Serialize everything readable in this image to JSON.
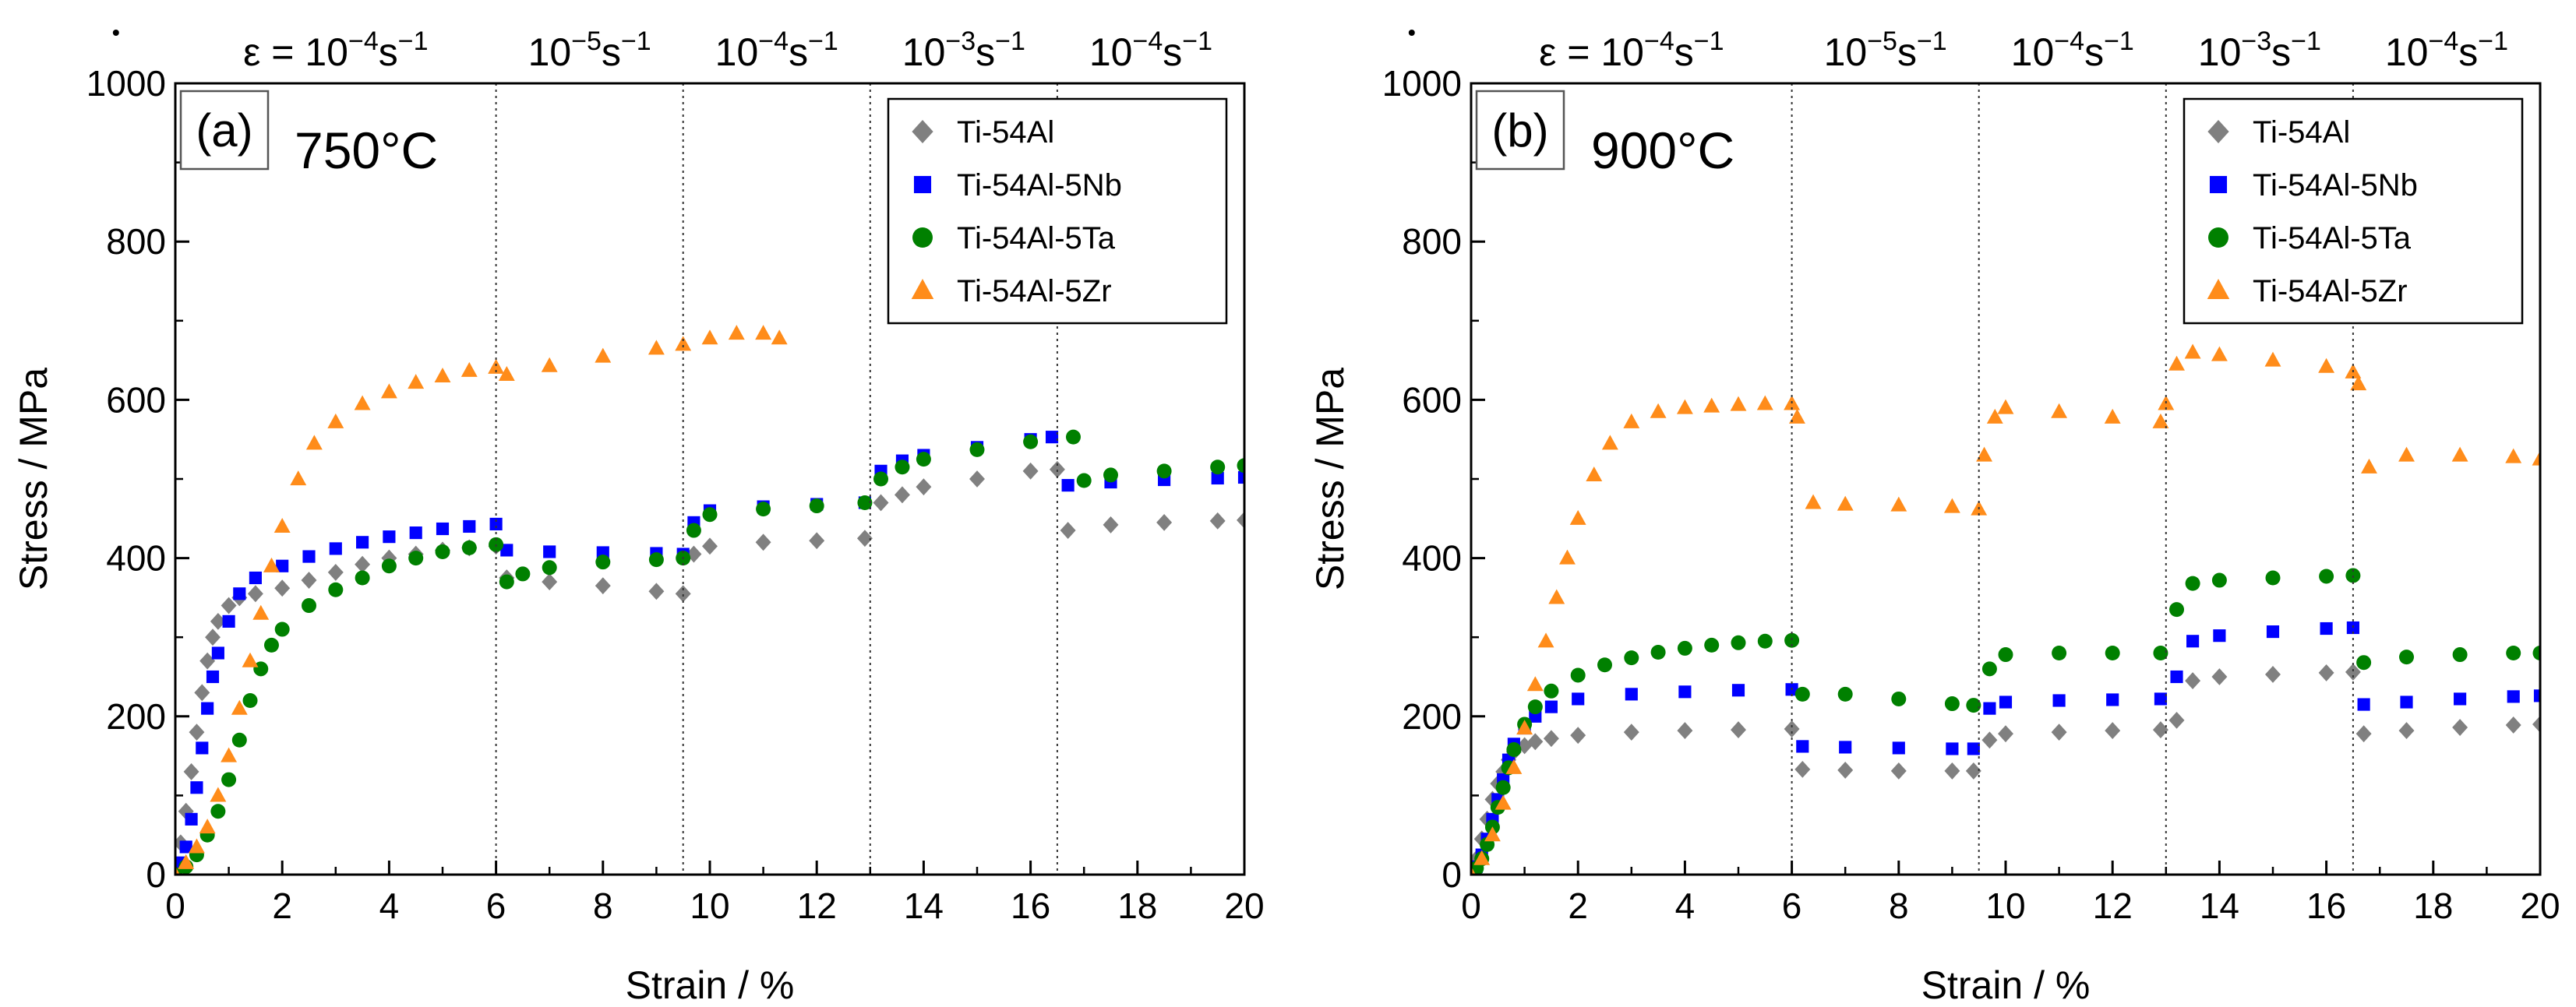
{
  "chart_data": [
    {
      "type": "scatter",
      "panel_label": "(a)",
      "temperature": "750°C",
      "xlabel": "Strain / %",
      "ylabel": "Stress / MPa",
      "xlim": [
        0,
        20
      ],
      "ylim": [
        0,
        1000
      ],
      "xticks": [
        0,
        2,
        4,
        6,
        8,
        10,
        12,
        14,
        16,
        18,
        20
      ],
      "yticks": [
        0,
        200,
        400,
        600,
        800,
        1000
      ],
      "grid": false,
      "legend_position": "top-right",
      "strain_rate_changes": [
        6,
        9.5,
        13,
        16.5
      ],
      "rate_labels": [
        {
          "prefix": "ε = 10",
          "exp": "−4",
          "unit": "s",
          "unit_exp": "−1"
        },
        {
          "prefix": "10",
          "exp": "−5",
          "unit": "s",
          "unit_exp": "−1"
        },
        {
          "prefix": "10",
          "exp": "−4",
          "unit": "s",
          "unit_exp": "−1"
        },
        {
          "prefix": "10",
          "exp": "−3",
          "unit": "s",
          "unit_exp": "−1"
        },
        {
          "prefix": "10",
          "exp": "−4",
          "unit": "s",
          "unit_exp": "−1"
        }
      ],
      "series": [
        {
          "name": "Ti-54Al",
          "color": "#808080",
          "marker": "diamond",
          "x": [
            0,
            0.1,
            0.2,
            0.3,
            0.4,
            0.5,
            0.6,
            0.7,
            0.8,
            1.0,
            1.2,
            1.5,
            2.0,
            2.5,
            3.0,
            3.5,
            4.0,
            4.5,
            5.0,
            5.5,
            6.0,
            6.2,
            7.0,
            8.0,
            9.0,
            9.5,
            9.7,
            10.0,
            11.0,
            12.0,
            12.9,
            13.2,
            13.6,
            14.0,
            15.0,
            16.0,
            16.5,
            16.7,
            17.5,
            18.5,
            19.5,
            20.0
          ],
          "y": [
            0,
            40,
            80,
            130,
            180,
            230,
            270,
            300,
            320,
            340,
            350,
            355,
            362,
            372,
            382,
            392,
            400,
            405,
            410,
            413,
            415,
            375,
            370,
            365,
            358,
            355,
            405,
            415,
            420,
            422,
            425,
            470,
            480,
            490,
            500,
            510,
            512,
            435,
            442,
            445,
            447,
            448
          ]
        },
        {
          "name": "Ti-54Al-5Nb",
          "color": "#0000ff",
          "marker": "square",
          "x": [
            0,
            0.1,
            0.2,
            0.3,
            0.4,
            0.5,
            0.6,
            0.7,
            0.8,
            1.0,
            1.2,
            1.5,
            2.0,
            2.5,
            3.0,
            3.5,
            4.0,
            4.5,
            5.0,
            5.5,
            6.0,
            6.2,
            7.0,
            8.0,
            9.0,
            9.5,
            9.7,
            10.0,
            11.0,
            12.0,
            12.9,
            13.2,
            13.6,
            14.0,
            15.0,
            16.0,
            16.4,
            16.7,
            17.5,
            18.5,
            19.5,
            20.0
          ],
          "y": [
            0,
            15,
            35,
            70,
            110,
            160,
            210,
            250,
            280,
            320,
            355,
            375,
            390,
            402,
            412,
            420,
            427,
            432,
            437,
            440,
            443,
            410,
            408,
            407,
            406,
            405,
            445,
            460,
            465,
            468,
            470,
            510,
            523,
            530,
            540,
            550,
            553,
            492,
            496,
            499,
            501,
            502
          ]
        },
        {
          "name": "Ti-54Al-5Ta",
          "color": "#008000",
          "marker": "circle",
          "x": [
            0,
            0.2,
            0.4,
            0.6,
            0.8,
            1.0,
            1.2,
            1.4,
            1.6,
            1.8,
            2.0,
            2.5,
            3.0,
            3.5,
            4.0,
            4.5,
            5.0,
            5.5,
            6.0,
            6.2,
            6.5,
            7.0,
            8.0,
            9.0,
            9.5,
            9.7,
            10.0,
            11.0,
            12.0,
            12.9,
            13.2,
            13.6,
            14.0,
            15.0,
            16.0,
            16.8,
            17.0,
            17.5,
            18.5,
            19.5,
            20.0
          ],
          "y": [
            0,
            10,
            25,
            50,
            80,
            120,
            170,
            220,
            260,
            290,
            310,
            340,
            360,
            375,
            390,
            400,
            408,
            413,
            417,
            370,
            380,
            388,
            395,
            398,
            400,
            435,
            455,
            462,
            466,
            470,
            500,
            515,
            525,
            537,
            547,
            553,
            498,
            505,
            510,
            515,
            517
          ]
        },
        {
          "name": "Ti-54Al-5Zr",
          "color": "#ff8c1a",
          "marker": "triangle",
          "x": [
            0,
            0.2,
            0.4,
            0.6,
            0.8,
            1.0,
            1.2,
            1.4,
            1.6,
            1.8,
            2.0,
            2.3,
            2.6,
            3.0,
            3.5,
            4.0,
            4.5,
            5.0,
            5.5,
            6.0,
            6.2,
            7.0,
            8.0,
            9.0,
            9.5,
            10.0,
            10.5,
            11.0,
            11.3
          ],
          "y": [
            0,
            15,
            35,
            60,
            100,
            150,
            210,
            270,
            330,
            390,
            440,
            500,
            545,
            572,
            595,
            610,
            622,
            630,
            637,
            641,
            632,
            643,
            655,
            665,
            670,
            678,
            684,
            684,
            678
          ]
        }
      ]
    },
    {
      "type": "scatter",
      "panel_label": "(b)",
      "temperature": "900°C",
      "xlabel": "Strain / %",
      "ylabel": "Stress / MPa",
      "xlim": [
        0,
        20
      ],
      "ylim": [
        0,
        1000
      ],
      "xticks": [
        0,
        2,
        4,
        6,
        8,
        10,
        12,
        14,
        16,
        18,
        20
      ],
      "yticks": [
        0,
        200,
        400,
        600,
        800,
        1000
      ],
      "grid": false,
      "legend_position": "top-right",
      "strain_rate_changes": [
        6,
        9.5,
        13,
        16.5
      ],
      "rate_labels": [
        {
          "prefix": "ε = 10",
          "exp": "−4",
          "unit": "s",
          "unit_exp": "−1"
        },
        {
          "prefix": "10",
          "exp": "−5",
          "unit": "s",
          "unit_exp": "−1"
        },
        {
          "prefix": "10",
          "exp": "−4",
          "unit": "s",
          "unit_exp": "−1"
        },
        {
          "prefix": "10",
          "exp": "−3",
          "unit": "s",
          "unit_exp": "−1"
        },
        {
          "prefix": "10",
          "exp": "−4",
          "unit": "s",
          "unit_exp": "−1"
        }
      ],
      "series": [
        {
          "name": "Ti-54Al",
          "color": "#808080",
          "marker": "diamond",
          "x": [
            0,
            0.1,
            0.2,
            0.3,
            0.4,
            0.5,
            0.6,
            0.7,
            0.8,
            1.0,
            1.2,
            1.5,
            2.0,
            3.0,
            4.0,
            5.0,
            6.0,
            6.2,
            7.0,
            8.0,
            9.0,
            9.4,
            9.7,
            10.0,
            11.0,
            12.0,
            12.9,
            13.2,
            13.5,
            14.0,
            15.0,
            16.0,
            16.5,
            16.7,
            17.5,
            18.5,
            19.5,
            20.0
          ],
          "y": [
            0,
            20,
            45,
            70,
            95,
            115,
            130,
            145,
            155,
            163,
            168,
            172,
            176,
            180,
            182,
            183,
            184,
            133,
            132,
            131,
            131,
            131,
            170,
            178,
            180,
            182,
            183,
            195,
            245,
            250,
            253,
            255,
            256,
            178,
            182,
            186,
            189,
            190
          ]
        },
        {
          "name": "Ti-54Al-5Nb",
          "color": "#0000ff",
          "marker": "square",
          "x": [
            0,
            0.1,
            0.2,
            0.3,
            0.4,
            0.5,
            0.6,
            0.7,
            0.8,
            1.0,
            1.2,
            1.5,
            2.0,
            3.0,
            4.0,
            5.0,
            6.0,
            6.2,
            7.0,
            8.0,
            9.0,
            9.4,
            9.7,
            10.0,
            11.0,
            12.0,
            12.9,
            13.2,
            13.5,
            14.0,
            15.0,
            16.0,
            16.5,
            16.7,
            17.5,
            18.5,
            19.5,
            20.0
          ],
          "y": [
            0,
            10,
            25,
            45,
            70,
            95,
            120,
            145,
            165,
            185,
            200,
            212,
            222,
            228,
            231,
            233,
            234,
            162,
            161,
            160,
            159,
            159,
            210,
            218,
            220,
            221,
            222,
            250,
            295,
            302,
            307,
            311,
            312,
            215,
            218,
            222,
            225,
            226
          ]
        },
        {
          "name": "Ti-54Al-5Ta",
          "color": "#008000",
          "marker": "circle",
          "x": [
            0,
            0.1,
            0.2,
            0.3,
            0.4,
            0.5,
            0.6,
            0.7,
            0.8,
            1.0,
            1.2,
            1.5,
            2.0,
            2.5,
            3.0,
            3.5,
            4.0,
            4.5,
            5.0,
            5.5,
            6.0,
            6.2,
            7.0,
            8.0,
            9.0,
            9.4,
            9.7,
            10.0,
            11.0,
            12.0,
            12.9,
            13.2,
            13.5,
            14.0,
            15.0,
            16.0,
            16.5,
            16.7,
            17.5,
            18.5,
            19.5,
            20.0
          ],
          "y": [
            0,
            8,
            20,
            38,
            60,
            85,
            110,
            135,
            158,
            190,
            212,
            232,
            252,
            265,
            274,
            281,
            286,
            290,
            293,
            295,
            296,
            228,
            228,
            222,
            216,
            214,
            260,
            278,
            280,
            280,
            280,
            335,
            368,
            372,
            375,
            377,
            378,
            268,
            275,
            278,
            280,
            280
          ]
        },
        {
          "name": "Ti-54Al-5Zr",
          "color": "#ff8c1a",
          "marker": "triangle",
          "x": [
            0,
            0.2,
            0.4,
            0.6,
            0.8,
            1.0,
            1.2,
            1.4,
            1.6,
            1.8,
            2.0,
            2.3,
            2.6,
            3.0,
            3.5,
            4.0,
            4.5,
            5.0,
            5.5,
            6.0,
            6.1,
            6.4,
            7.0,
            8.0,
            9.0,
            9.5,
            9.6,
            9.8,
            10.0,
            11.0,
            12.0,
            12.9,
            13.0,
            13.2,
            13.5,
            14.0,
            15.0,
            16.0,
            16.5,
            16.6,
            16.8,
            17.5,
            18.5,
            19.5,
            20.0
          ],
          "y": [
            0,
            20,
            50,
            90,
            135,
            185,
            240,
            295,
            350,
            400,
            450,
            505,
            545,
            572,
            585,
            590,
            592,
            594,
            595,
            595,
            578,
            470,
            468,
            467,
            465,
            462,
            530,
            578,
            590,
            585,
            578,
            572,
            595,
            645,
            660,
            657,
            650,
            642,
            635,
            620,
            515,
            530,
            530,
            528,
            525
          ]
        }
      ]
    }
  ]
}
